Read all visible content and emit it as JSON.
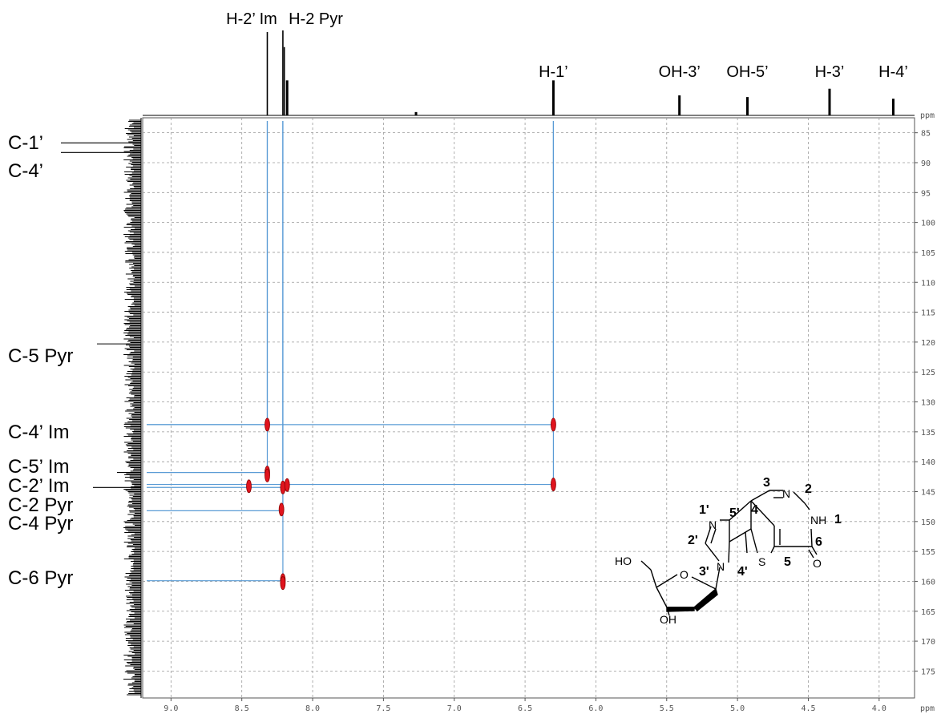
{
  "chart_data": {
    "type": "scatter",
    "title": "",
    "x_axis": {
      "unit": "ppm",
      "range": [
        9.2,
        3.75
      ],
      "ticks": [
        "9.0",
        "8.5",
        "8.0",
        "7.5",
        "7.0",
        "6.5",
        "6.0",
        "5.5",
        "5.0",
        "4.5",
        "4.0"
      ]
    },
    "y_axis": {
      "unit": "ppm",
      "range": [
        82.5,
        179.5
      ],
      "ticks": [
        "85",
        "90",
        "95",
        "100",
        "105",
        "110",
        "115",
        "120",
        "125",
        "130",
        "135",
        "140",
        "145",
        "150",
        "155",
        "160",
        "165",
        "170",
        "175"
      ]
    },
    "grid": true,
    "top_trace_labels": [
      {
        "text": "H-2’ Im",
        "ppm": 8.32
      },
      {
        "text": "H-2 Pyr",
        "ppm": 8.21
      },
      {
        "text": "H-1’",
        "ppm": 6.3
      },
      {
        "text": "OH-3’",
        "ppm": 5.41
      },
      {
        "text": "OH-5’",
        "ppm": 4.93
      },
      {
        "text": "H-3’",
        "ppm": 4.35
      },
      {
        "text": "H-4’",
        "ppm": 3.9
      }
    ],
    "top_peaks": [
      {
        "ppm": 8.32,
        "height": 1.0
      },
      {
        "ppm": 8.21,
        "height": 1.02
      },
      {
        "ppm": 8.2,
        "height": 0.82
      },
      {
        "ppm": 8.18,
        "height": 0.42
      },
      {
        "ppm": 7.27,
        "height": 0.04
      },
      {
        "ppm": 6.3,
        "height": 0.42
      },
      {
        "ppm": 5.41,
        "height": 0.24
      },
      {
        "ppm": 4.93,
        "height": 0.22
      },
      {
        "ppm": 4.35,
        "height": 0.32
      },
      {
        "ppm": 3.9,
        "height": 0.2
      }
    ],
    "left_trace_labels": [
      {
        "text": "C-1’",
        "ppm": 86.7
      },
      {
        "text": "C-4’",
        "ppm": 88.3
      },
      {
        "text": "C-5 Pyr",
        "ppm": 120.3
      },
      {
        "text": "C-4’ Im",
        "ppm": 133.8
      },
      {
        "text": "C-5’ Im",
        "ppm": 141.8
      },
      {
        "text": "C-2’ Im",
        "ppm": 144.3
      },
      {
        "text": "C-2 Pyr",
        "ppm": 146.4
      },
      {
        "text": "C-4 Pyr",
        "ppm": 148.3
      },
      {
        "text": "C-6 Pyr",
        "ppm": 159.9
      }
    ],
    "left_peaks": [
      {
        "ppm": 86.7,
        "height": 1.0
      },
      {
        "ppm": 88.3,
        "height": 1.0
      },
      {
        "ppm": 120.3,
        "height": 0.55
      },
      {
        "ppm": 141.8,
        "height": 0.3
      },
      {
        "ppm": 144.3,
        "height": 0.6
      }
    ],
    "cross_peaks": [
      {
        "x": 8.32,
        "y": 133.8
      },
      {
        "x": 6.3,
        "y": 133.8
      },
      {
        "x": 8.32,
        "y": 141.8
      },
      {
        "x": 8.32,
        "y": 142.3
      },
      {
        "x": 8.45,
        "y": 144.1
      },
      {
        "x": 8.21,
        "y": 144.3
      },
      {
        "x": 8.18,
        "y": 143.9
      },
      {
        "x": 6.3,
        "y": 143.8
      },
      {
        "x": 8.22,
        "y": 148.0
      },
      {
        "x": 8.21,
        "y": 159.8
      },
      {
        "x": 8.21,
        "y": 160.3
      }
    ],
    "correlation_lines": [
      {
        "h_ppm": 8.32,
        "c_ppm": 133.8
      },
      {
        "h_ppm": 6.3,
        "c_ppm": 133.8
      },
      {
        "h_ppm": 8.32,
        "c_ppm": 141.8
      },
      {
        "h_ppm": 8.21,
        "c_ppm": 144.3
      },
      {
        "h_ppm": 6.3,
        "c_ppm": 143.8
      },
      {
        "h_ppm": 8.21,
        "c_ppm": 148.2
      },
      {
        "h_ppm": 8.21,
        "c_ppm": 159.9
      }
    ],
    "colors": {
      "cross_peak": "#e0141e",
      "correlation_line": "#5a9bd5",
      "grid": "#9a9a9a",
      "trace": "#000000"
    }
  },
  "structure": {
    "atom_labels": [
      "HO",
      "O",
      "N",
      "N",
      "N",
      "S",
      "NH",
      "O",
      "OH"
    ],
    "numbering": [
      "1'",
      "5'",
      "4",
      "3",
      "2",
      "1",
      "6",
      "5",
      "2'",
      "3'",
      "4'"
    ]
  }
}
